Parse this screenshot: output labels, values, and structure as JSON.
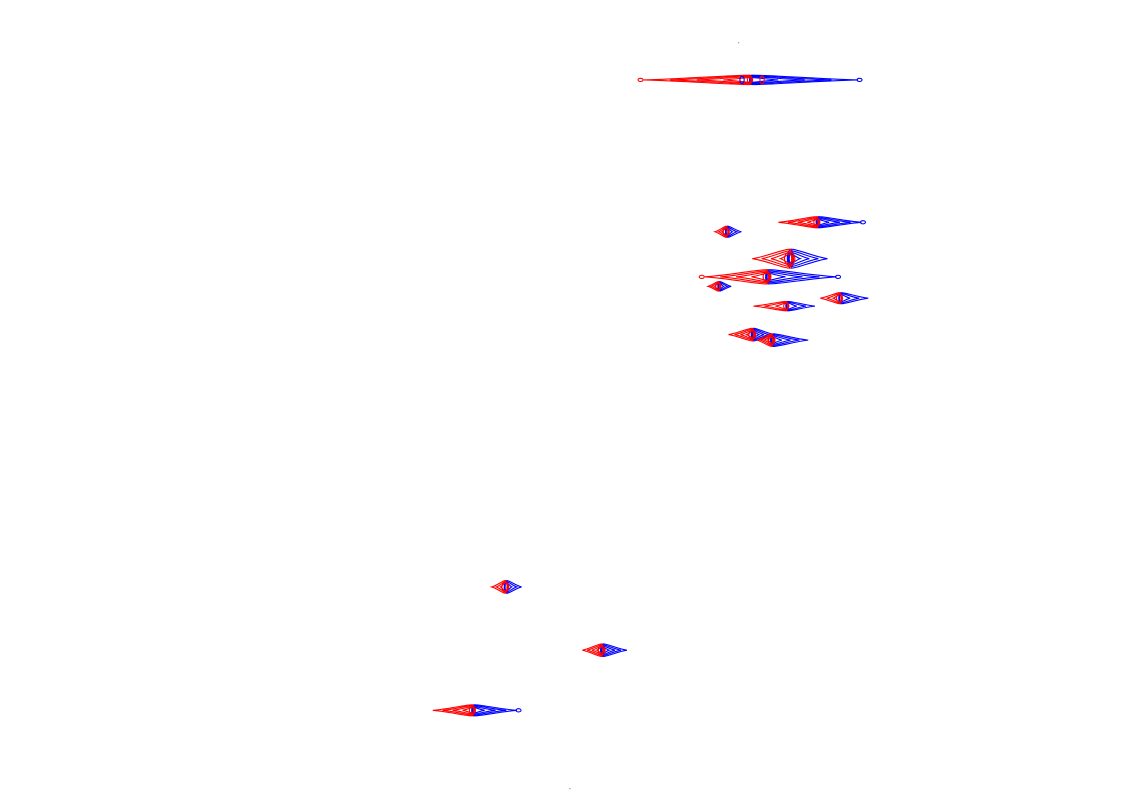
{
  "chart_data": {
    "type": "contour",
    "title": "",
    "xlabel": "",
    "ylabel": "",
    "grid": false,
    "legend": "none",
    "axes_visible": false,
    "x_range": [
      0,
      1
    ],
    "y_range": [
      0,
      1
    ],
    "colors": {
      "series_a": "#ff0000",
      "series_b": "#0000ff"
    },
    "series": [
      {
        "color_key": "series_a"
      },
      {
        "color_key": "series_b"
      }
    ],
    "peaks": [
      {
        "x": 0.662,
        "y": 0.899,
        "span_a": 0.094,
        "span_b": 0.094,
        "height": 0.006,
        "levels": 4,
        "notch": true
      },
      {
        "x": 0.721,
        "y": 0.719,
        "span_a": 0.034,
        "span_b": 0.038,
        "height": 0.007,
        "levels": 4
      },
      {
        "x": 0.641,
        "y": 0.707,
        "span_a": 0.01,
        "span_b": 0.012,
        "height": 0.007,
        "levels": 3
      },
      {
        "x": 0.697,
        "y": 0.673,
        "span_a": 0.033,
        "span_b": 0.032,
        "height": 0.012,
        "levels": 4
      },
      {
        "x": 0.677,
        "y": 0.65,
        "span_a": 0.055,
        "span_b": 0.06,
        "height": 0.009,
        "levels": 4
      },
      {
        "x": 0.634,
        "y": 0.638,
        "span_a": 0.009,
        "span_b": 0.01,
        "height": 0.006,
        "levels": 3
      },
      {
        "x": 0.741,
        "y": 0.623,
        "span_a": 0.017,
        "span_b": 0.024,
        "height": 0.007,
        "levels": 3
      },
      {
        "x": 0.694,
        "y": 0.613,
        "span_a": 0.029,
        "span_b": 0.024,
        "height": 0.006,
        "levels": 3
      },
      {
        "x": 0.664,
        "y": 0.577,
        "span_a": 0.021,
        "span_b": 0.018,
        "height": 0.008,
        "levels": 4
      },
      {
        "x": 0.681,
        "y": 0.57,
        "span_a": 0.013,
        "span_b": 0.031,
        "height": 0.008,
        "levels": 4
      },
      {
        "x": 0.446,
        "y": 0.258,
        "span_a": 0.012,
        "span_b": 0.013,
        "height": 0.008,
        "levels": 3
      },
      {
        "x": 0.531,
        "y": 0.178,
        "span_a": 0.017,
        "span_b": 0.021,
        "height": 0.008,
        "levels": 4
      },
      {
        "x": 0.417,
        "y": 0.102,
        "span_a": 0.035,
        "span_b": 0.038,
        "height": 0.007,
        "levels": 4
      }
    ],
    "specks": [
      {
        "x": 0.652,
        "y": 0.946
      },
      {
        "x": 0.503,
        "y": 0.003
      }
    ]
  }
}
